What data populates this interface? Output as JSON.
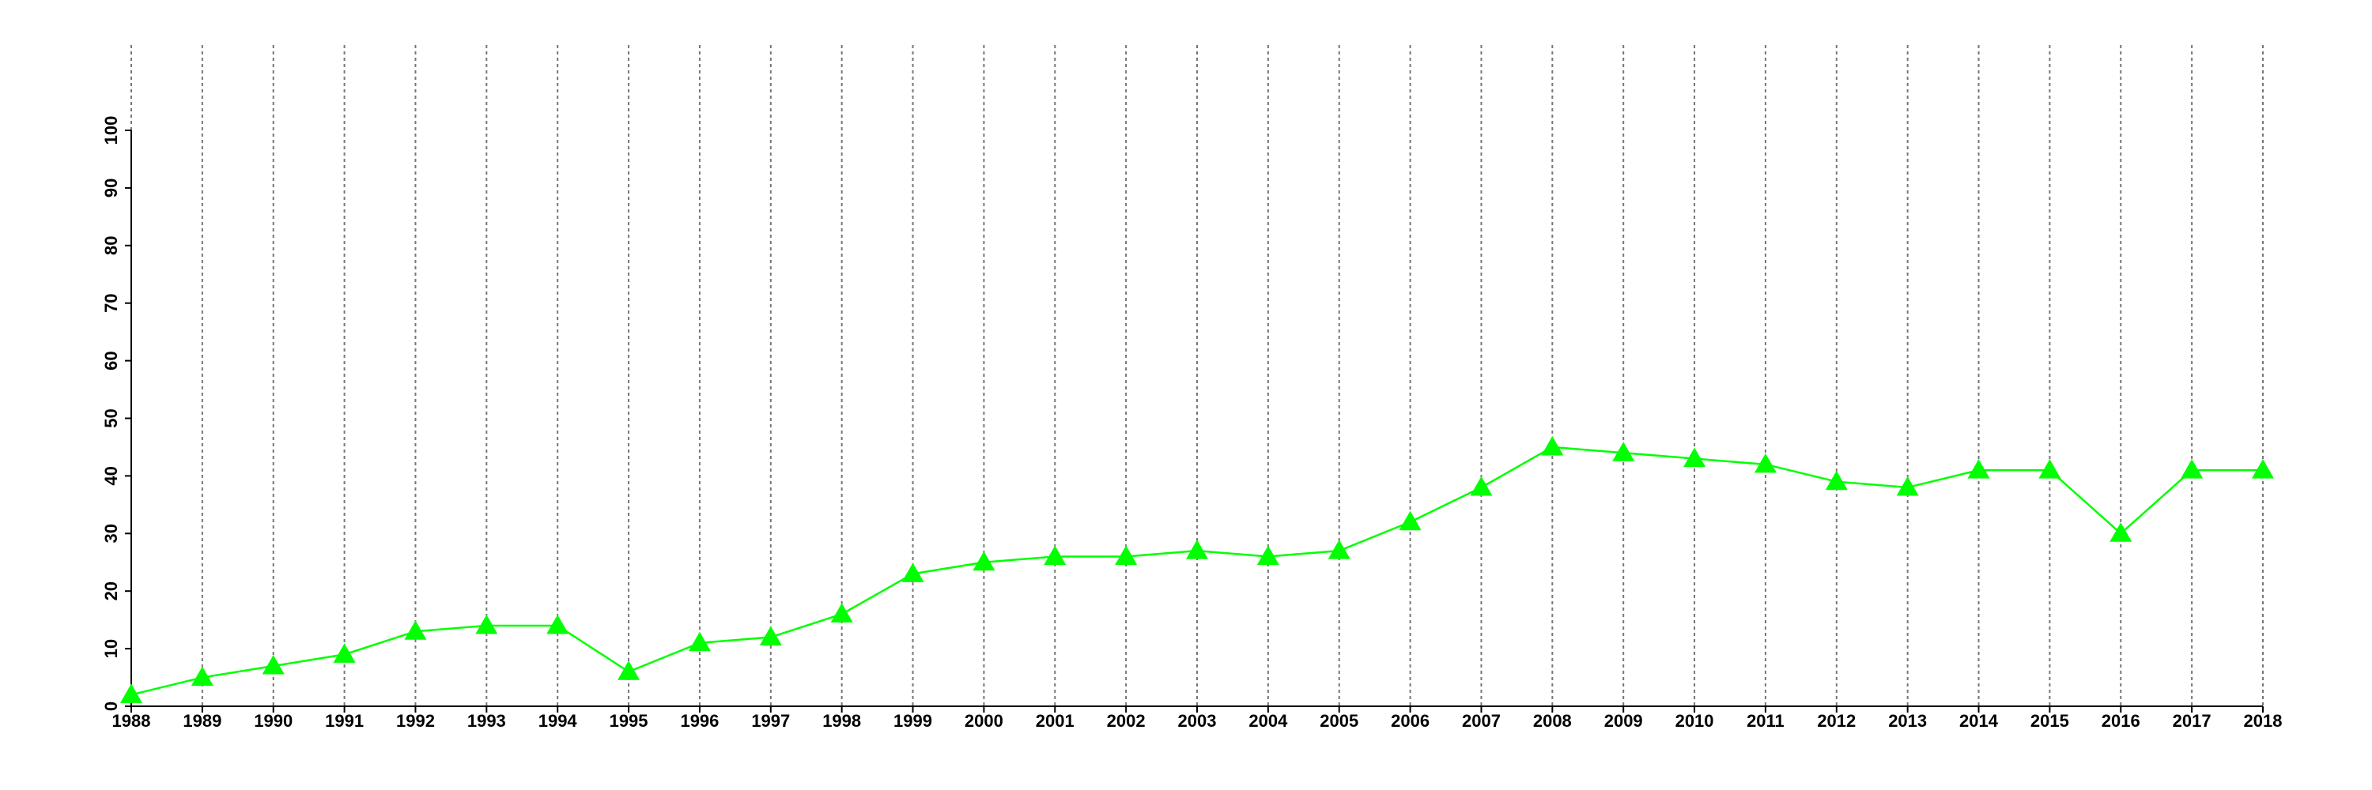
{
  "chart_data": {
    "type": "line",
    "x": [
      1988,
      1989,
      1990,
      1991,
      1992,
      1993,
      1994,
      1995,
      1996,
      1997,
      1998,
      1999,
      2000,
      2001,
      2002,
      2003,
      2004,
      2005,
      2006,
      2007,
      2008,
      2009,
      2010,
      2011,
      2012,
      2013,
      2014,
      2015,
      2016,
      2017,
      2018
    ],
    "series": [
      {
        "color": "#00ff00",
        "values": [
          2,
          5,
          7,
          9,
          13,
          14,
          14,
          6,
          11,
          12,
          16,
          23,
          25,
          26,
          26,
          27,
          26,
          27,
          32,
          38,
          45,
          44,
          43,
          42,
          39,
          38,
          41,
          41,
          30,
          41,
          41
        ]
      }
    ],
    "xlim": [
      1988,
      2018
    ],
    "xticks": [
      1988,
      1989,
      1990,
      1991,
      1992,
      1993,
      1994,
      1995,
      1996,
      1997,
      1998,
      1999,
      2000,
      2001,
      2002,
      2003,
      2004,
      2005,
      2006,
      2007,
      2008,
      2009,
      2010,
      2011,
      2012,
      2013,
      2014,
      2015,
      2016,
      2017,
      2018
    ],
    "ylim": [
      0,
      100
    ],
    "yticks": [
      0,
      10,
      20,
      30,
      40,
      50,
      60,
      70,
      80,
      90,
      100
    ],
    "x_grid": true
  }
}
